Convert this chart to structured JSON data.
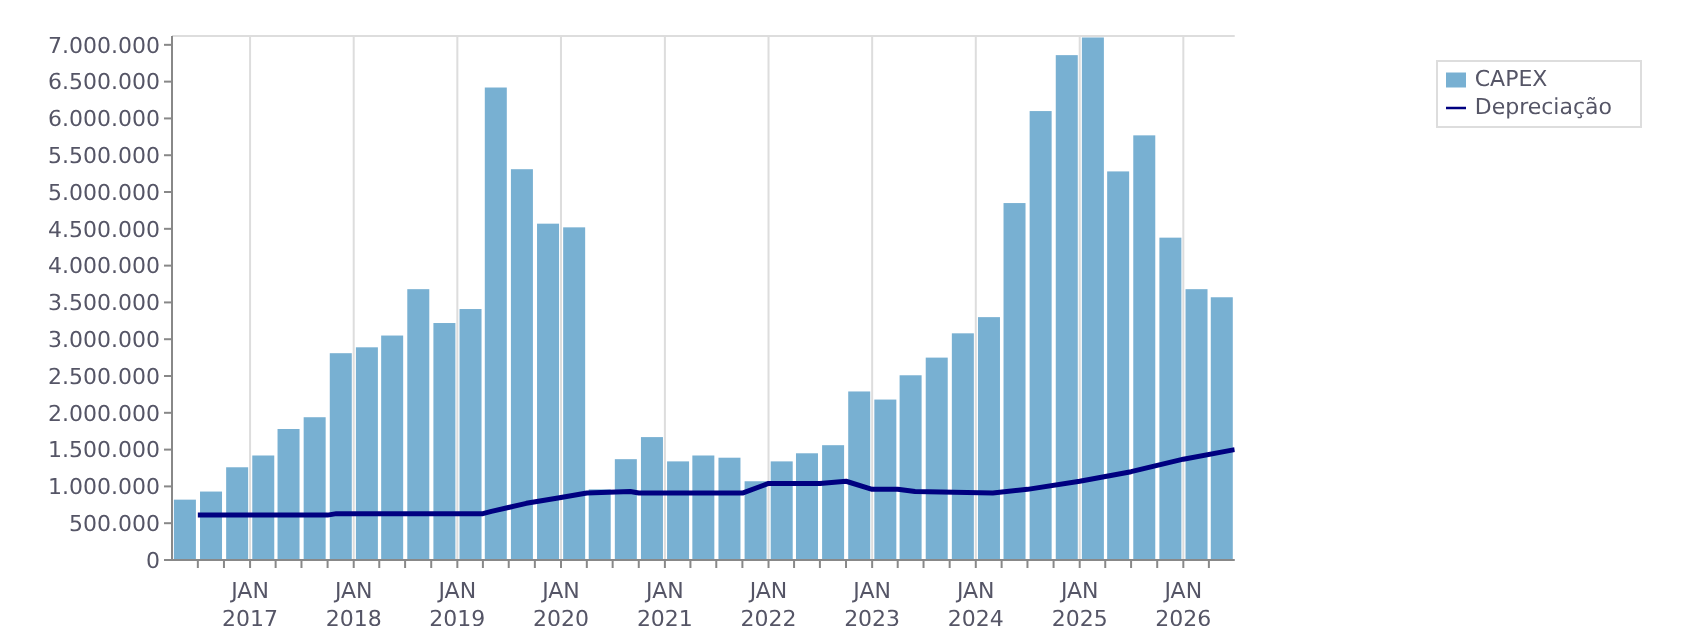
{
  "chart_data": {
    "type": "bar",
    "x": [
      "2016-05-15",
      "2016-08-15",
      "2016-11-15",
      "2017-02-15",
      "2017-05-15",
      "2017-08-15",
      "2017-11-15",
      "2018-02-15",
      "2018-05-15",
      "2018-08-15",
      "2018-11-15",
      "2019-02-15",
      "2019-05-15",
      "2019-08-15",
      "2019-11-15",
      "2020-02-15",
      "2020-05-15",
      "2020-08-15",
      "2020-11-15",
      "2021-02-15",
      "2021-05-15",
      "2021-08-15",
      "2021-11-15",
      "2022-02-15",
      "2022-05-15",
      "2022-08-15",
      "2022-11-15",
      "2023-02-15",
      "2023-05-15",
      "2023-08-15",
      "2023-11-15",
      "2024-02-15",
      "2024-05-15",
      "2024-08-15",
      "2024-11-15",
      "2025-02-15",
      "2025-05-15",
      "2025-08-15",
      "2025-11-15",
      "2026-02-15",
      "2026-05-15"
    ],
    "series": [
      {
        "name": "CAPEX",
        "color": "#78b0d2",
        "values": [
          820000,
          930000,
          1260000,
          1420000,
          1780000,
          1940000,
          2810000,
          2890000,
          3050000,
          3680000,
          3220000,
          3410000,
          6420000,
          5310000,
          4570000,
          4520000,
          960000,
          1370000,
          1670000,
          1340000,
          1420000,
          1390000,
          1070000,
          1340000,
          1450000,
          1560000,
          2290000,
          2180000,
          2510000,
          2750000,
          3080000,
          3300000,
          4850000,
          6100000,
          6860000,
          7100000,
          5280000,
          5770000,
          4380000,
          3680000,
          3570000
        ]
      },
      {
        "name": "Depreciação",
        "type": "line",
        "color": "#000080",
        "x": [
          "2016-07-01",
          "2017-10-01",
          "2017-11-01",
          "2019-04-01",
          "2019-05-01",
          "2019-09-01",
          "2020-01-01",
          "2020-04-01",
          "2020-09-01",
          "2020-10-01",
          "2021-10-01",
          "2022-01-01",
          "2022-07-01",
          "2022-10-01",
          "2023-01-01",
          "2023-04-01",
          "2023-06-01",
          "2024-03-01",
          "2024-07-01",
          "2025-01-01",
          "2025-07-01",
          "2026-01-01",
          "2026-07-01"
        ],
        "values": [
          610000,
          610000,
          630000,
          630000,
          660000,
          770000,
          850000,
          910000,
          930000,
          910000,
          910000,
          1040000,
          1040000,
          1070000,
          960000,
          960000,
          930000,
          910000,
          960000,
          1070000,
          1200000,
          1370000,
          1500000
        ]
      }
    ],
    "xlim": [
      "2016-04-01",
      "2026-07-01"
    ],
    "xticks": [
      {
        "value": "2016-07-01",
        "label": null
      },
      {
        "value": "2016-10-01",
        "label": null
      },
      {
        "value": "2017-01-01",
        "label": "JAN 2017"
      },
      {
        "value": "2017-04-01",
        "label": null
      },
      {
        "value": "2017-07-01",
        "label": null
      },
      {
        "value": "2017-10-01",
        "label": null
      },
      {
        "value": "2018-01-01",
        "label": "JAN 2018"
      },
      {
        "value": "2018-04-01",
        "label": null
      },
      {
        "value": "2018-07-01",
        "label": null
      },
      {
        "value": "2018-10-01",
        "label": null
      },
      {
        "value": "2019-01-01",
        "label": "JAN 2019"
      },
      {
        "value": "2019-04-01",
        "label": null
      },
      {
        "value": "2019-07-01",
        "label": null
      },
      {
        "value": "2019-10-01",
        "label": null
      },
      {
        "value": "2020-01-01",
        "label": "JAN 2020"
      },
      {
        "value": "2020-04-01",
        "label": null
      },
      {
        "value": "2020-07-01",
        "label": null
      },
      {
        "value": "2020-10-01",
        "label": null
      },
      {
        "value": "2021-01-01",
        "label": "JAN 2021"
      },
      {
        "value": "2021-04-01",
        "label": null
      },
      {
        "value": "2021-07-01",
        "label": null
      },
      {
        "value": "2021-10-01",
        "label": null
      },
      {
        "value": "2022-01-01",
        "label": "JAN 2022"
      },
      {
        "value": "2022-04-01",
        "label": null
      },
      {
        "value": "2022-07-01",
        "label": null
      },
      {
        "value": "2022-10-01",
        "label": null
      },
      {
        "value": "2023-01-01",
        "label": "JAN 2023"
      },
      {
        "value": "2023-04-01",
        "label": null
      },
      {
        "value": "2023-07-01",
        "label": null
      },
      {
        "value": "2023-10-01",
        "label": null
      },
      {
        "value": "2024-01-01",
        "label": "JAN 2024"
      },
      {
        "value": "2024-04-01",
        "label": null
      },
      {
        "value": "2024-07-01",
        "label": null
      },
      {
        "value": "2024-10-01",
        "label": null
      },
      {
        "value": "2025-01-01",
        "label": "JAN 2025"
      },
      {
        "value": "2025-04-01",
        "label": null
      },
      {
        "value": "2025-07-01",
        "label": null
      },
      {
        "value": "2025-10-01",
        "label": null
      },
      {
        "value": "2026-01-01",
        "label": "JAN 2026"
      },
      {
        "value": "2026-04-01",
        "label": null
      }
    ],
    "ylim": [
      0,
      7120000
    ],
    "yticks": [
      {
        "value": 0,
        "label": "0"
      },
      {
        "value": 500000,
        "label": "500.000"
      },
      {
        "value": 1000000,
        "label": "1.000.000"
      },
      {
        "value": 1500000,
        "label": "1.500.000"
      },
      {
        "value": 2000000,
        "label": "2.000.000"
      },
      {
        "value": 2500000,
        "label": "2.500.000"
      },
      {
        "value": 3000000,
        "label": "3.000.000"
      },
      {
        "value": 3500000,
        "label": "3.500.000"
      },
      {
        "value": 4000000,
        "label": "4.000.000"
      },
      {
        "value": 4500000,
        "label": "4.500.000"
      },
      {
        "value": 5000000,
        "label": "5.000.000"
      },
      {
        "value": 5500000,
        "label": "5.500.000"
      },
      {
        "value": 6000000,
        "label": "6.000.000"
      },
      {
        "value": 6500000,
        "label": "6.500.000"
      },
      {
        "value": 7000000,
        "label": "7.000.000"
      }
    ],
    "grid": true,
    "legend": "top right",
    "marker": "none",
    "line_style": "solid"
  }
}
